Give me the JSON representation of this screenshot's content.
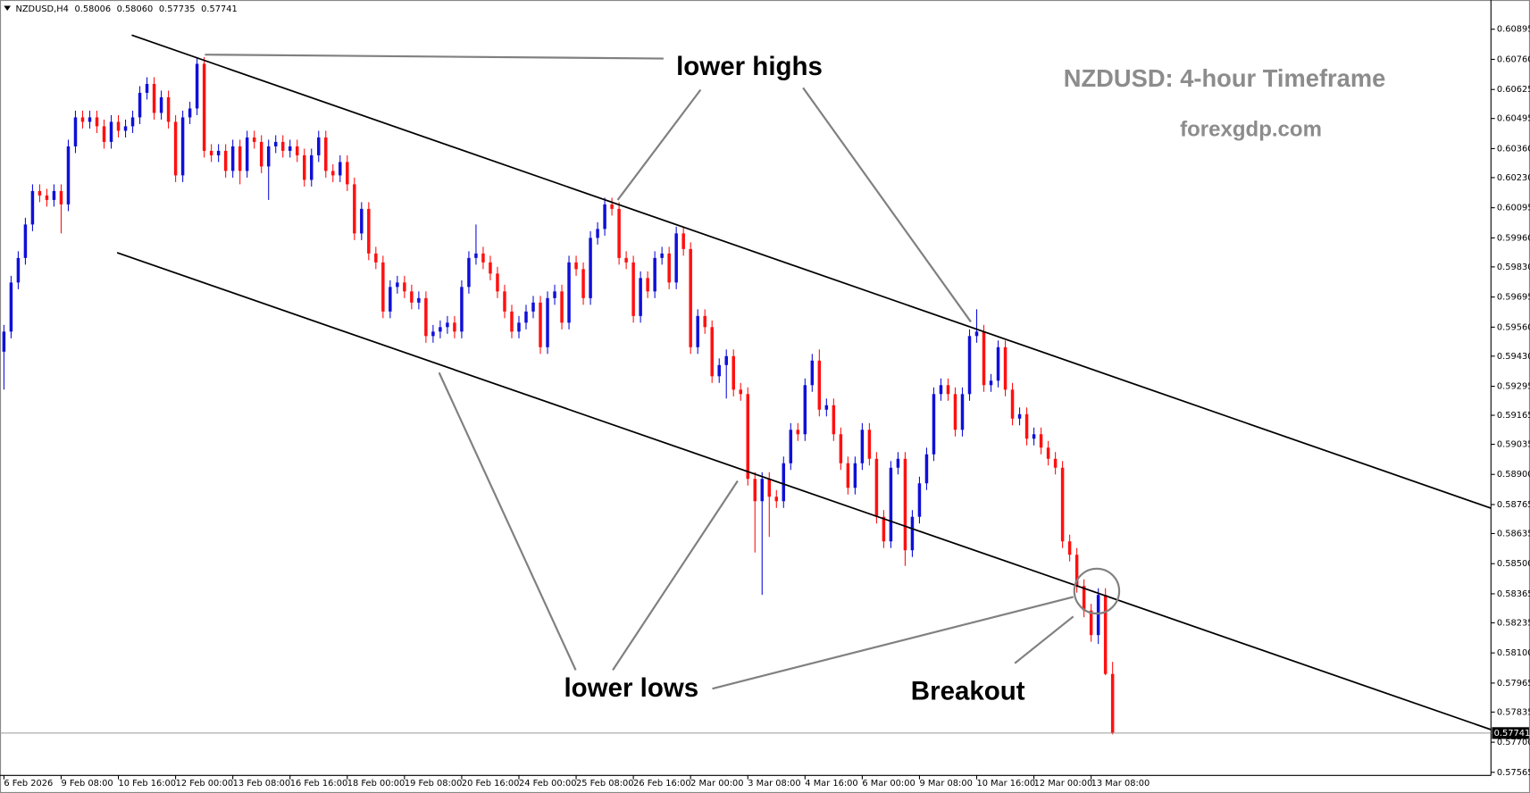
{
  "chart_data": {
    "type": "candlestick",
    "title": "NZDUSD: 4-hour Timeframe",
    "subtitle": "forexgdp.com",
    "symbol": "NZDUSD,H4",
    "header_ohlc": [
      0.58006,
      {
        "value": 0.5806,
        "label": "0.58060"
      },
      0.57735,
      0.57741
    ],
    "annotations": [
      "lower highs",
      "lower lows",
      "Breakout"
    ],
    "current_price": 0.57741,
    "up_color": "#1010d8",
    "down_color": "#ff1010",
    "open": [
      0.5945,
      0.5954,
      0.5976,
      0.5987,
      0.6002,
      0.6017,
      0.6015,
      0.6013,
      0.6017,
      0.6011,
      0.6037,
      0.605,
      0.6048,
      0.605,
      0.6046,
      0.6039,
      0.6048,
      0.6044,
      0.6046,
      0.605,
      0.6061,
      0.6065,
      0.6052,
      0.6059,
      0.6048,
      0.6024,
      0.605,
      0.6054,
      0.6074,
      0.6035,
      0.6033,
      0.6035,
      0.6026,
      0.6037,
      0.6026,
      0.6041,
      0.6039,
      0.6028,
      0.6037,
      0.6039,
      0.6035,
      0.6037,
      0.6033,
      0.6022,
      0.6033,
      0.6041,
      0.6026,
      0.6024,
      0.603,
      0.602,
      0.5998,
      0.6009,
      0.5989,
      0.5985,
      0.5963,
      0.5974,
      0.5976,
      0.5972,
      0.5967,
      0.5969,
      0.5952,
      0.5954,
      0.5956,
      0.5958,
      0.5954,
      0.5974,
      0.5987,
      0.5989,
      0.5985,
      0.598,
      0.5972,
      0.5963,
      0.5954,
      0.5958,
      0.5963,
      0.5967,
      0.5947,
      0.5969,
      0.5972,
      0.5958,
      0.5985,
      0.5982,
      0.5969,
      0.5996,
      0.6,
      0.6011,
      0.6009,
      0.5987,
      0.5985,
      0.5961,
      0.5978,
      0.5972,
      0.5987,
      0.5989,
      0.5976,
      0.5998,
      0.5991,
      0.5947,
      0.5961,
      0.5956,
      0.5934,
      0.5939,
      0.5943,
      0.5928,
      0.5926,
      0.5888,
      0.5878,
      0.5888,
      0.588,
      0.5878,
      0.5895,
      0.591,
      0.5908,
      0.593,
      0.5941,
      0.5919,
      0.5921,
      0.5908,
      0.5895,
      0.5884,
      0.5895,
      0.591,
      0.5897,
      0.5871,
      0.586,
      0.5893,
      0.5897,
      0.5856,
      0.5871,
      0.5886,
      0.5899,
      0.5926,
      0.593,
      0.5926,
      0.591,
      0.5926,
      0.5952,
      0.5954,
      0.593,
      0.5932,
      0.5947,
      0.5928,
      0.5915,
      0.5917,
      0.5906,
      0.5908,
      0.5902,
      0.5897,
      0.5893,
      0.586,
      0.5854,
      0.584,
      0.5829,
      0.5818,
      0.5836,
      0.58006
    ],
    "high": [
      0.5957,
      0.5979,
      0.599,
      0.6005,
      0.602,
      0.602,
      0.6018,
      0.602,
      0.602,
      0.604,
      0.6053,
      0.6053,
      0.6053,
      0.6053,
      0.6049,
      0.6051,
      0.6051,
      0.6049,
      0.6053,
      0.6064,
      0.6068,
      0.6068,
      0.6062,
      0.6062,
      0.6051,
      0.6053,
      0.6057,
      0.6077,
      0.6077,
      0.6038,
      0.6038,
      0.6038,
      0.604,
      0.604,
      0.6044,
      0.6044,
      0.6042,
      0.604,
      0.6042,
      0.6042,
      0.604,
      0.604,
      0.6036,
      0.6036,
      0.6044,
      0.6044,
      0.6029,
      0.6033,
      0.6033,
      0.6023,
      0.6012,
      0.6012,
      0.5992,
      0.5988,
      0.5977,
      0.5979,
      0.5979,
      0.5975,
      0.5972,
      0.5972,
      0.5957,
      0.5959,
      0.5961,
      0.5961,
      0.5977,
      0.599,
      0.6002,
      0.5992,
      0.5988,
      0.5983,
      0.5975,
      0.5966,
      0.5961,
      0.5966,
      0.597,
      0.597,
      0.5972,
      0.5975,
      0.5975,
      0.5988,
      0.5988,
      0.5985,
      0.5999,
      0.6003,
      0.6014,
      0.6014,
      0.6012,
      0.599,
      0.5988,
      0.5981,
      0.5981,
      0.599,
      0.5992,
      0.5992,
      0.6001,
      0.6001,
      0.5994,
      0.5964,
      0.5964,
      0.5959,
      0.5942,
      0.5946,
      0.5946,
      0.5931,
      0.5929,
      0.5891,
      0.5891,
      0.5891,
      0.5883,
      0.5898,
      0.5913,
      0.5913,
      0.5933,
      0.5944,
      0.5946,
      0.5924,
      0.5924,
      0.5911,
      0.5898,
      0.5898,
      0.5913,
      0.5913,
      0.59,
      0.5874,
      0.5896,
      0.59,
      0.59,
      0.5874,
      0.5889,
      0.5902,
      0.5929,
      0.5933,
      0.5933,
      0.5929,
      0.5929,
      0.5955,
      0.5964,
      0.5957,
      0.5935,
      0.595,
      0.595,
      0.5931,
      0.592,
      0.592,
      0.5911,
      0.5911,
      0.5905,
      0.59,
      0.5896,
      0.5863,
      0.5857,
      0.5843,
      0.5832,
      0.5839,
      0.5839,
      0.5806
    ],
    "low": [
      0.5928,
      0.5951,
      0.5973,
      0.5984,
      0.5999,
      0.6012,
      0.601,
      0.601,
      0.5998,
      0.6008,
      0.6034,
      0.6045,
      0.6045,
      0.6043,
      0.6036,
      0.6036,
      0.6041,
      0.6041,
      0.6043,
      0.6047,
      0.6058,
      0.6049,
      0.6049,
      0.6045,
      0.6021,
      0.6021,
      0.6047,
      0.6051,
      0.6032,
      0.603,
      0.603,
      0.6023,
      0.6023,
      0.602,
      0.6023,
      0.6036,
      0.6025,
      0.6013,
      0.6034,
      0.6032,
      0.6032,
      0.603,
      0.6019,
      0.6019,
      0.603,
      0.6023,
      0.6021,
      0.6021,
      0.6017,
      0.5995,
      0.5995,
      0.5986,
      0.5982,
      0.596,
      0.596,
      0.5971,
      0.5969,
      0.5964,
      0.5964,
      0.5949,
      0.5949,
      0.5951,
      0.5953,
      0.5951,
      0.5951,
      0.5971,
      0.5984,
      0.5982,
      0.5977,
      0.5969,
      0.596,
      0.5951,
      0.5951,
      0.5955,
      0.596,
      0.5944,
      0.5944,
      0.5966,
      0.5955,
      0.5955,
      0.5979,
      0.5966,
      0.5966,
      0.5993,
      0.5997,
      0.6006,
      0.5984,
      0.5982,
      0.5958,
      0.5958,
      0.5969,
      0.5969,
      0.5984,
      0.5973,
      0.5973,
      0.5988,
      0.5944,
      0.5944,
      0.5953,
      0.5931,
      0.5931,
      0.5924,
      0.5925,
      0.5923,
      0.5885,
      0.5855,
      0.5836,
      0.5862,
      0.5875,
      0.5875,
      0.5892,
      0.5905,
      0.5905,
      0.5927,
      0.5916,
      0.5916,
      0.5905,
      0.5892,
      0.5881,
      0.5881,
      0.5892,
      0.5894,
      0.5868,
      0.5857,
      0.5857,
      0.589,
      0.5849,
      0.5853,
      0.5868,
      0.5883,
      0.5896,
      0.5923,
      0.5923,
      0.5907,
      0.5907,
      0.5923,
      0.5949,
      0.5927,
      0.5927,
      0.5929,
      0.5925,
      0.5912,
      0.5912,
      0.5903,
      0.5903,
      0.5899,
      0.5894,
      0.589,
      0.5857,
      0.5851,
      0.5837,
      0.5826,
      0.5815,
      0.5814,
      0.58,
      0.57735
    ],
    "close": [
      0.5954,
      0.5976,
      0.5987,
      0.6002,
      0.6017,
      0.6015,
      0.6013,
      0.6017,
      0.6011,
      0.6037,
      0.605,
      0.6048,
      0.605,
      0.6046,
      0.6039,
      0.6048,
      0.6044,
      0.6046,
      0.605,
      0.6061,
      0.6065,
      0.6052,
      0.6059,
      0.6048,
      0.6024,
      0.605,
      0.6054,
      0.6074,
      0.6035,
      0.6033,
      0.6035,
      0.6026,
      0.6037,
      0.6026,
      0.6041,
      0.6039,
      0.6028,
      0.6037,
      0.6039,
      0.6035,
      0.6037,
      0.6033,
      0.6022,
      0.6033,
      0.6041,
      0.6026,
      0.6024,
      0.603,
      0.602,
      0.5998,
      0.6009,
      0.5989,
      0.5985,
      0.5963,
      0.5974,
      0.5976,
      0.5972,
      0.5967,
      0.5969,
      0.5952,
      0.5954,
      0.5956,
      0.5958,
      0.5954,
      0.5974,
      0.5987,
      0.5989,
      0.5985,
      0.598,
      0.5972,
      0.5963,
      0.5954,
      0.5958,
      0.5963,
      0.5967,
      0.5947,
      0.5969,
      0.5972,
      0.5958,
      0.5985,
      0.5982,
      0.5969,
      0.5996,
      0.6,
      0.6011,
      0.6009,
      0.5987,
      0.5985,
      0.5961,
      0.5978,
      0.5972,
      0.5987,
      0.5989,
      0.5976,
      0.5998,
      0.5991,
      0.5947,
      0.5961,
      0.5956,
      0.5934,
      0.5939,
      0.5943,
      0.5928,
      0.5926,
      0.5888,
      0.5878,
      0.5888,
      0.588,
      0.5878,
      0.5895,
      0.591,
      0.5908,
      0.593,
      0.5941,
      0.5919,
      0.5921,
      0.5908,
      0.5895,
      0.5884,
      0.5895,
      0.591,
      0.5897,
      0.5871,
      0.586,
      0.5893,
      0.5897,
      0.5856,
      0.5871,
      0.5886,
      0.5899,
      0.5926,
      0.593,
      0.5926,
      0.591,
      0.5926,
      0.5952,
      0.5954,
      0.593,
      0.5932,
      0.5947,
      0.5928,
      0.5915,
      0.5917,
      0.5906,
      0.5908,
      0.5902,
      0.5897,
      0.5893,
      0.586,
      0.5854,
      0.584,
      0.5829,
      0.5818,
      0.5836,
      0.58006,
      0.57741
    ],
    "xlim": [
      -0.55,
      207.9
    ],
    "xticks": [
      {
        "value": 0,
        "label": "6 Feb 2026"
      },
      {
        "value": 8,
        "label": "9 Feb 08:00"
      },
      {
        "value": 16,
        "label": "10 Feb 16:00"
      },
      {
        "value": 24,
        "label": "12 Feb 00:00"
      },
      {
        "value": 32,
        "label": "13 Feb 08:00"
      },
      {
        "value": 40,
        "label": "16 Feb 16:00"
      },
      {
        "value": 48,
        "label": "18 Feb 00:00"
      },
      {
        "value": 56,
        "label": "19 Feb 08:00"
      },
      {
        "value": 64,
        "label": "20 Feb 16:00"
      },
      {
        "value": 72,
        "label": "24 Feb 00:00"
      },
      {
        "value": 80,
        "label": "25 Feb 08:00"
      },
      {
        "value": 88,
        "label": "26 Feb 16:00"
      },
      {
        "value": 96,
        "label": "2 Mar 00:00"
      },
      {
        "value": 104,
        "label": "3 Mar 08:00"
      },
      {
        "value": 112,
        "label": "4 Mar 16:00"
      },
      {
        "value": 120,
        "label": "6 Mar 00:00"
      },
      {
        "value": 128,
        "label": "9 Mar 08:00"
      },
      {
        "value": 136,
        "label": "10 Mar 16:00"
      },
      {
        "value": 144,
        "label": "12 Mar 00:00"
      },
      {
        "value": 152,
        "label": "13 Mar 08:00"
      }
    ],
    "ylim": [
      0.57551,
      0.61026
    ],
    "yticks": [
      0.60895,
      {
        "value": 0.6076,
        "label": "0.60760"
      },
      0.60625,
      0.60495,
      {
        "value": 0.6036,
        "label": "0.60360"
      },
      {
        "value": 0.6023,
        "label": "0.60230"
      },
      0.60095,
      {
        "value": 0.5996,
        "label": "0.59960"
      },
      {
        "value": 0.5983,
        "label": "0.59830"
      },
      0.59695,
      {
        "value": 0.5956,
        "label": "0.59560"
      },
      {
        "value": 0.5943,
        "label": "0.59430"
      },
      0.59295,
      0.59165,
      0.59035,
      {
        "value": 0.589,
        "label": "0.58900"
      },
      0.58765,
      0.58635,
      {
        "value": 0.585,
        "label": "0.58500"
      },
      0.58365,
      0.58235,
      {
        "value": 0.581,
        "label": "0.58100"
      },
      0.57965,
      0.57835,
      {
        "value": 0.577,
        "label": "0.57700"
      },
      0.57565
    ],
    "grid": false
  }
}
